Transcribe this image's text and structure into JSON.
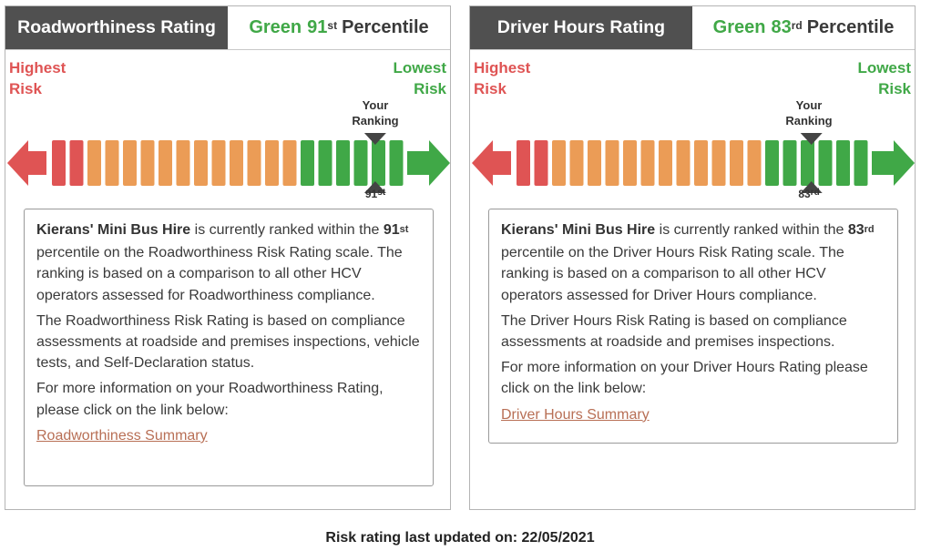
{
  "cards": [
    {
      "header": {
        "title": "Roadworthiness Rating",
        "band": "Green",
        "number": "91",
        "suffix": "st",
        "word": "Percentile"
      },
      "labels": {
        "highest": "Highest",
        "highest_risk": "Risk",
        "lowest": "Lowest",
        "lowest_risk": "Risk"
      },
      "marker": {
        "your": "Your",
        "ranking": "Ranking",
        "number": "91",
        "suffix": "st"
      },
      "scale": {
        "percentile": 91
      },
      "info": {
        "operator": "Kierans' Mini Bus Hire",
        "p1_a": " is currently ranked within the ",
        "p1_num": "91",
        "p1_suffix": "st",
        "p1_b": " percentile on the Roadworthiness Risk Rating scale. The ranking is based on a comparison to all other HCV operators assessed for Roadworthiness compliance.",
        "p2": "The Roadworthiness Risk Rating is based on compliance assessments at roadside and premises inspections, vehicle tests, and Self-Declaration status.",
        "p3": "For more information on your Roadworthiness Rating, please click on the link below:",
        "link": "Roadworthiness Summary"
      }
    },
    {
      "header": {
        "title": "Driver Hours Rating",
        "band": "Green",
        "number": "83",
        "suffix": "rd",
        "word": "Percentile"
      },
      "labels": {
        "highest": "Highest",
        "highest_risk": "Risk",
        "lowest": "Lowest",
        "lowest_risk": "Risk"
      },
      "marker": {
        "your": "Your",
        "ranking": "Ranking",
        "number": "83",
        "suffix": "rd"
      },
      "scale": {
        "percentile": 83
      },
      "info": {
        "operator": "Kierans' Mini Bus Hire",
        "p1_a": " is currently ranked within the ",
        "p1_num": "83",
        "p1_suffix": "rd",
        "p1_b": " percentile on the Driver Hours Risk Rating scale. The ranking is based on a comparison to all other HCV operators assessed for Driver Hours compliance.",
        "p2": "The Driver Hours Risk Rating is based on compliance assessments at roadside and premises inspections.",
        "p3": "For more information on your Driver Hours Rating please click on the link below:",
        "link": "Driver Hours Summary"
      }
    }
  ],
  "colors": {
    "red": "#df5454",
    "orange": "#eb9c56",
    "green": "#40a847",
    "header_bg": "#505050",
    "link": "#b86f55"
  },
  "footer": {
    "text": "Risk rating last updated on: 22/05/2021"
  }
}
